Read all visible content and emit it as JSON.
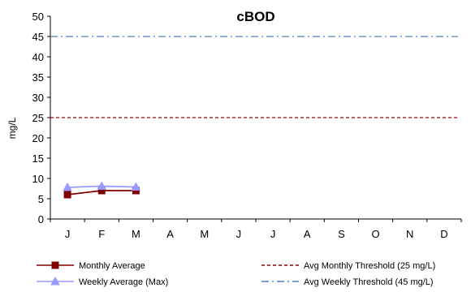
{
  "chart_data": {
    "type": "line",
    "title": "cBOD",
    "xlabel": "",
    "ylabel": "mg/L",
    "categories": [
      "J",
      "F",
      "M",
      "A",
      "M",
      "J",
      "J",
      "A",
      "S",
      "O",
      "N",
      "D"
    ],
    "yticks": [
      "0",
      "5",
      "10",
      "15",
      "20",
      "25",
      "30",
      "35",
      "40",
      "45",
      "50"
    ],
    "ylim": [
      0,
      50
    ],
    "grid": false,
    "legend_position": "bottom",
    "series": [
      {
        "name": "Monthly Average",
        "color": "#800000",
        "marker": "square",
        "dash": "solid",
        "values": [
          6,
          7,
          7,
          null,
          null,
          null,
          null,
          null,
          null,
          null,
          null,
          null
        ]
      },
      {
        "name": "Weekly Average (Max)",
        "color": "#9999FF",
        "marker": "triangle",
        "dash": "solid",
        "values": [
          7.8,
          8.1,
          7.9,
          null,
          null,
          null,
          null,
          null,
          null,
          null,
          null,
          null
        ]
      },
      {
        "name": "Avg Monthly Threshold (25 mg/L)",
        "color": "#990000",
        "marker": "none",
        "dash": "dashed",
        "values": [
          25,
          25,
          25,
          25,
          25,
          25,
          25,
          25,
          25,
          25,
          25,
          25
        ]
      },
      {
        "name": "Avg Weekly Threshold (45 mg/L)",
        "color": "#4F81BD",
        "marker": "none",
        "dash": "dash-dot",
        "values": [
          45,
          45,
          45,
          45,
          45,
          45,
          45,
          45,
          45,
          45,
          45,
          45
        ]
      }
    ]
  }
}
